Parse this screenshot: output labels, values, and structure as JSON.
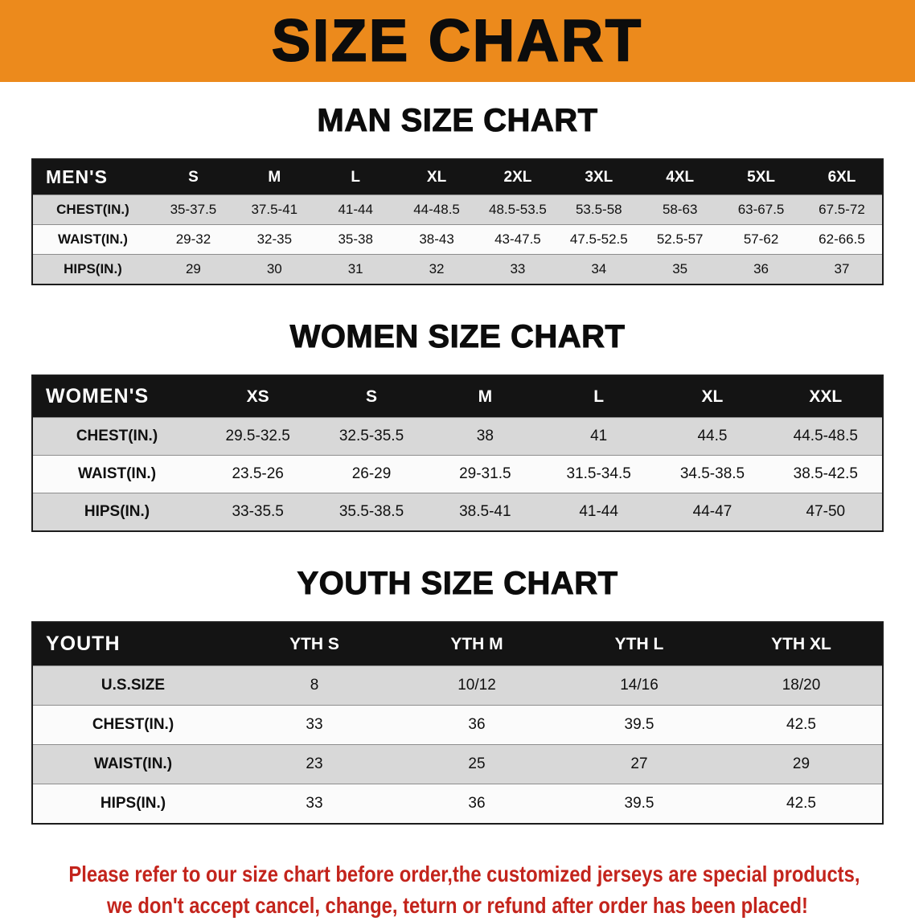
{
  "banner": {
    "title": "SIZE CHART"
  },
  "colors": {
    "banner_bg": "#ec8a1c",
    "header_bg": "#141414",
    "row_alt": "#d8d8d8",
    "row_base": "#fbfbfb",
    "footer_text": "#c3241c",
    "title_text": "#0c0c0c"
  },
  "chart_data": [
    {
      "type": "table",
      "title": "MAN SIZE CHART",
      "corner_label": "MEN'S",
      "columns": [
        "S",
        "M",
        "L",
        "XL",
        "2XL",
        "3XL",
        "4XL",
        "5XL",
        "6XL"
      ],
      "rows": [
        {
          "label": "CHEST(IN.)",
          "values": [
            "35-37.5",
            "37.5-41",
            "41-44",
            "44-48.5",
            "48.5-53.5",
            "53.5-58",
            "58-63",
            "63-67.5",
            "67.5-72"
          ]
        },
        {
          "label": "WAIST(IN.)",
          "values": [
            "29-32",
            "32-35",
            "35-38",
            "38-43",
            "43-47.5",
            "47.5-52.5",
            "52.5-57",
            "57-62",
            "62-66.5"
          ]
        },
        {
          "label": "HIPS(IN.)",
          "values": [
            "29",
            "30",
            "31",
            "32",
            "33",
            "34",
            "35",
            "36",
            "37"
          ]
        }
      ]
    },
    {
      "type": "table",
      "title": "WOMEN SIZE CHART",
      "corner_label": "WOMEN'S",
      "columns": [
        "XS",
        "S",
        "M",
        "L",
        "XL",
        "XXL"
      ],
      "rows": [
        {
          "label": "CHEST(IN.)",
          "values": [
            "29.5-32.5",
            "32.5-35.5",
            "38",
            "41",
            "44.5",
            "44.5-48.5"
          ]
        },
        {
          "label": "WAIST(IN.)",
          "values": [
            "23.5-26",
            "26-29",
            "29-31.5",
            "31.5-34.5",
            "34.5-38.5",
            "38.5-42.5"
          ]
        },
        {
          "label": "HIPS(IN.)",
          "values": [
            "33-35.5",
            "35.5-38.5",
            "38.5-41",
            "41-44",
            "44-47",
            "47-50"
          ]
        }
      ]
    },
    {
      "type": "table",
      "title": "YOUTH SIZE CHART",
      "corner_label": "YOUTH",
      "columns": [
        "YTH S",
        "YTH M",
        "YTH L",
        "YTH XL"
      ],
      "rows": [
        {
          "label": "U.S.SIZE",
          "values": [
            "8",
            "10/12",
            "14/16",
            "18/20"
          ]
        },
        {
          "label": "CHEST(IN.)",
          "values": [
            "33",
            "36",
            "39.5",
            "42.5"
          ]
        },
        {
          "label": "WAIST(IN.)",
          "values": [
            "23",
            "25",
            "27",
            "29"
          ]
        },
        {
          "label": "HIPS(IN.)",
          "values": [
            "33",
            "36",
            "39.5",
            "42.5"
          ]
        }
      ]
    }
  ],
  "footer": {
    "line1": "Please refer to our size chart before order,the customized jerseys are special products,",
    "line2": "we don't accept cancel, change, teturn or refund after order has been placed!"
  }
}
